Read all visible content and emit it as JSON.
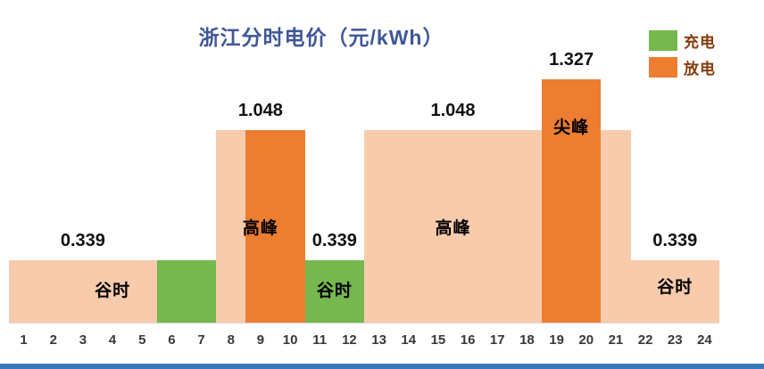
{
  "title": "浙江分时电价（元/kWh）",
  "legend": [
    {
      "label": "充电",
      "series": "charge",
      "color": "#76b84e"
    },
    {
      "label": "放电",
      "series": "discharge",
      "color": "#ed7d31"
    }
  ],
  "colors": {
    "price": "#f8cbad",
    "charge": "#76b84e",
    "discharge": "#ed7d31",
    "title_text": "#3f5796",
    "legend_text": "#843c0c",
    "value_label_text": "#111111",
    "zone_label_text": "#000000",
    "axis_text": "#383838",
    "axis_line": "#d9d9d9",
    "bottom_strip": "#3a78bd"
  },
  "chart_data": {
    "type": "bar",
    "title": "浙江分时电价（元/kWh）",
    "unit": "元/kWh",
    "x_hours": [
      1,
      2,
      3,
      4,
      5,
      6,
      7,
      8,
      9,
      10,
      11,
      12,
      13,
      14,
      15,
      16,
      17,
      18,
      19,
      20,
      21,
      22,
      23,
      24
    ],
    "ylim": [
      0,
      1.45
    ],
    "grid": false,
    "legend_position": "top-right",
    "series_legend": {
      "charge": "充电",
      "discharge": "放电"
    },
    "hourly_price": [
      0.339,
      0.339,
      0.339,
      0.339,
      0.339,
      0.339,
      0.339,
      1.048,
      1.048,
      1.048,
      0.339,
      0.339,
      1.048,
      1.048,
      1.048,
      1.048,
      1.048,
      1.048,
      1.327,
      1.327,
      1.048,
      0.339,
      0.339,
      0.339
    ],
    "blocks": [
      {
        "hours": [
          1,
          5
        ],
        "value": 0.339,
        "series": "price"
      },
      {
        "hours": [
          6,
          7
        ],
        "value": 0.339,
        "series": "charge"
      },
      {
        "hours": [
          8,
          8
        ],
        "value": 1.048,
        "series": "price"
      },
      {
        "hours": [
          9,
          10
        ],
        "value": 1.048,
        "series": "discharge"
      },
      {
        "hours": [
          11,
          12
        ],
        "value": 0.339,
        "series": "charge"
      },
      {
        "hours": [
          13,
          21
        ],
        "value": 1.048,
        "series": "price"
      },
      {
        "hours": [
          19,
          20
        ],
        "value": 1.327,
        "series": "discharge"
      },
      {
        "hours": [
          22,
          24
        ],
        "value": 0.339,
        "series": "price"
      }
    ],
    "value_labels": [
      {
        "text": "0.339",
        "hours": [
          1,
          5
        ],
        "value": 0.339
      },
      {
        "text": "1.048",
        "hours": [
          8,
          10
        ],
        "value": 1.048
      },
      {
        "text": "0.339",
        "hours": [
          11,
          12
        ],
        "value": 0.339
      },
      {
        "text": "1.048",
        "hours": [
          13,
          18
        ],
        "value": 1.048
      },
      {
        "text": "1.327",
        "hours": [
          19,
          20
        ],
        "value": 1.327
      },
      {
        "text": "0.339",
        "hours": [
          22,
          24
        ],
        "value": 0.339
      }
    ],
    "zone_labels": [
      {
        "text": "谷时",
        "hours": [
          3,
          5
        ],
        "label_y": 0.17
      },
      {
        "text": "高峰",
        "hours": [
          8,
          10
        ],
        "label_y": 0.51
      },
      {
        "text": "谷时",
        "hours": [
          11,
          12
        ],
        "label_y": 0.17
      },
      {
        "text": "高峰",
        "hours": [
          13,
          18
        ],
        "label_y": 0.51
      },
      {
        "text": "尖峰",
        "hours": [
          19,
          20
        ],
        "label_y": 1.06
      },
      {
        "text": "谷时",
        "hours": [
          22,
          24
        ],
        "label_y": 0.19
      }
    ]
  }
}
